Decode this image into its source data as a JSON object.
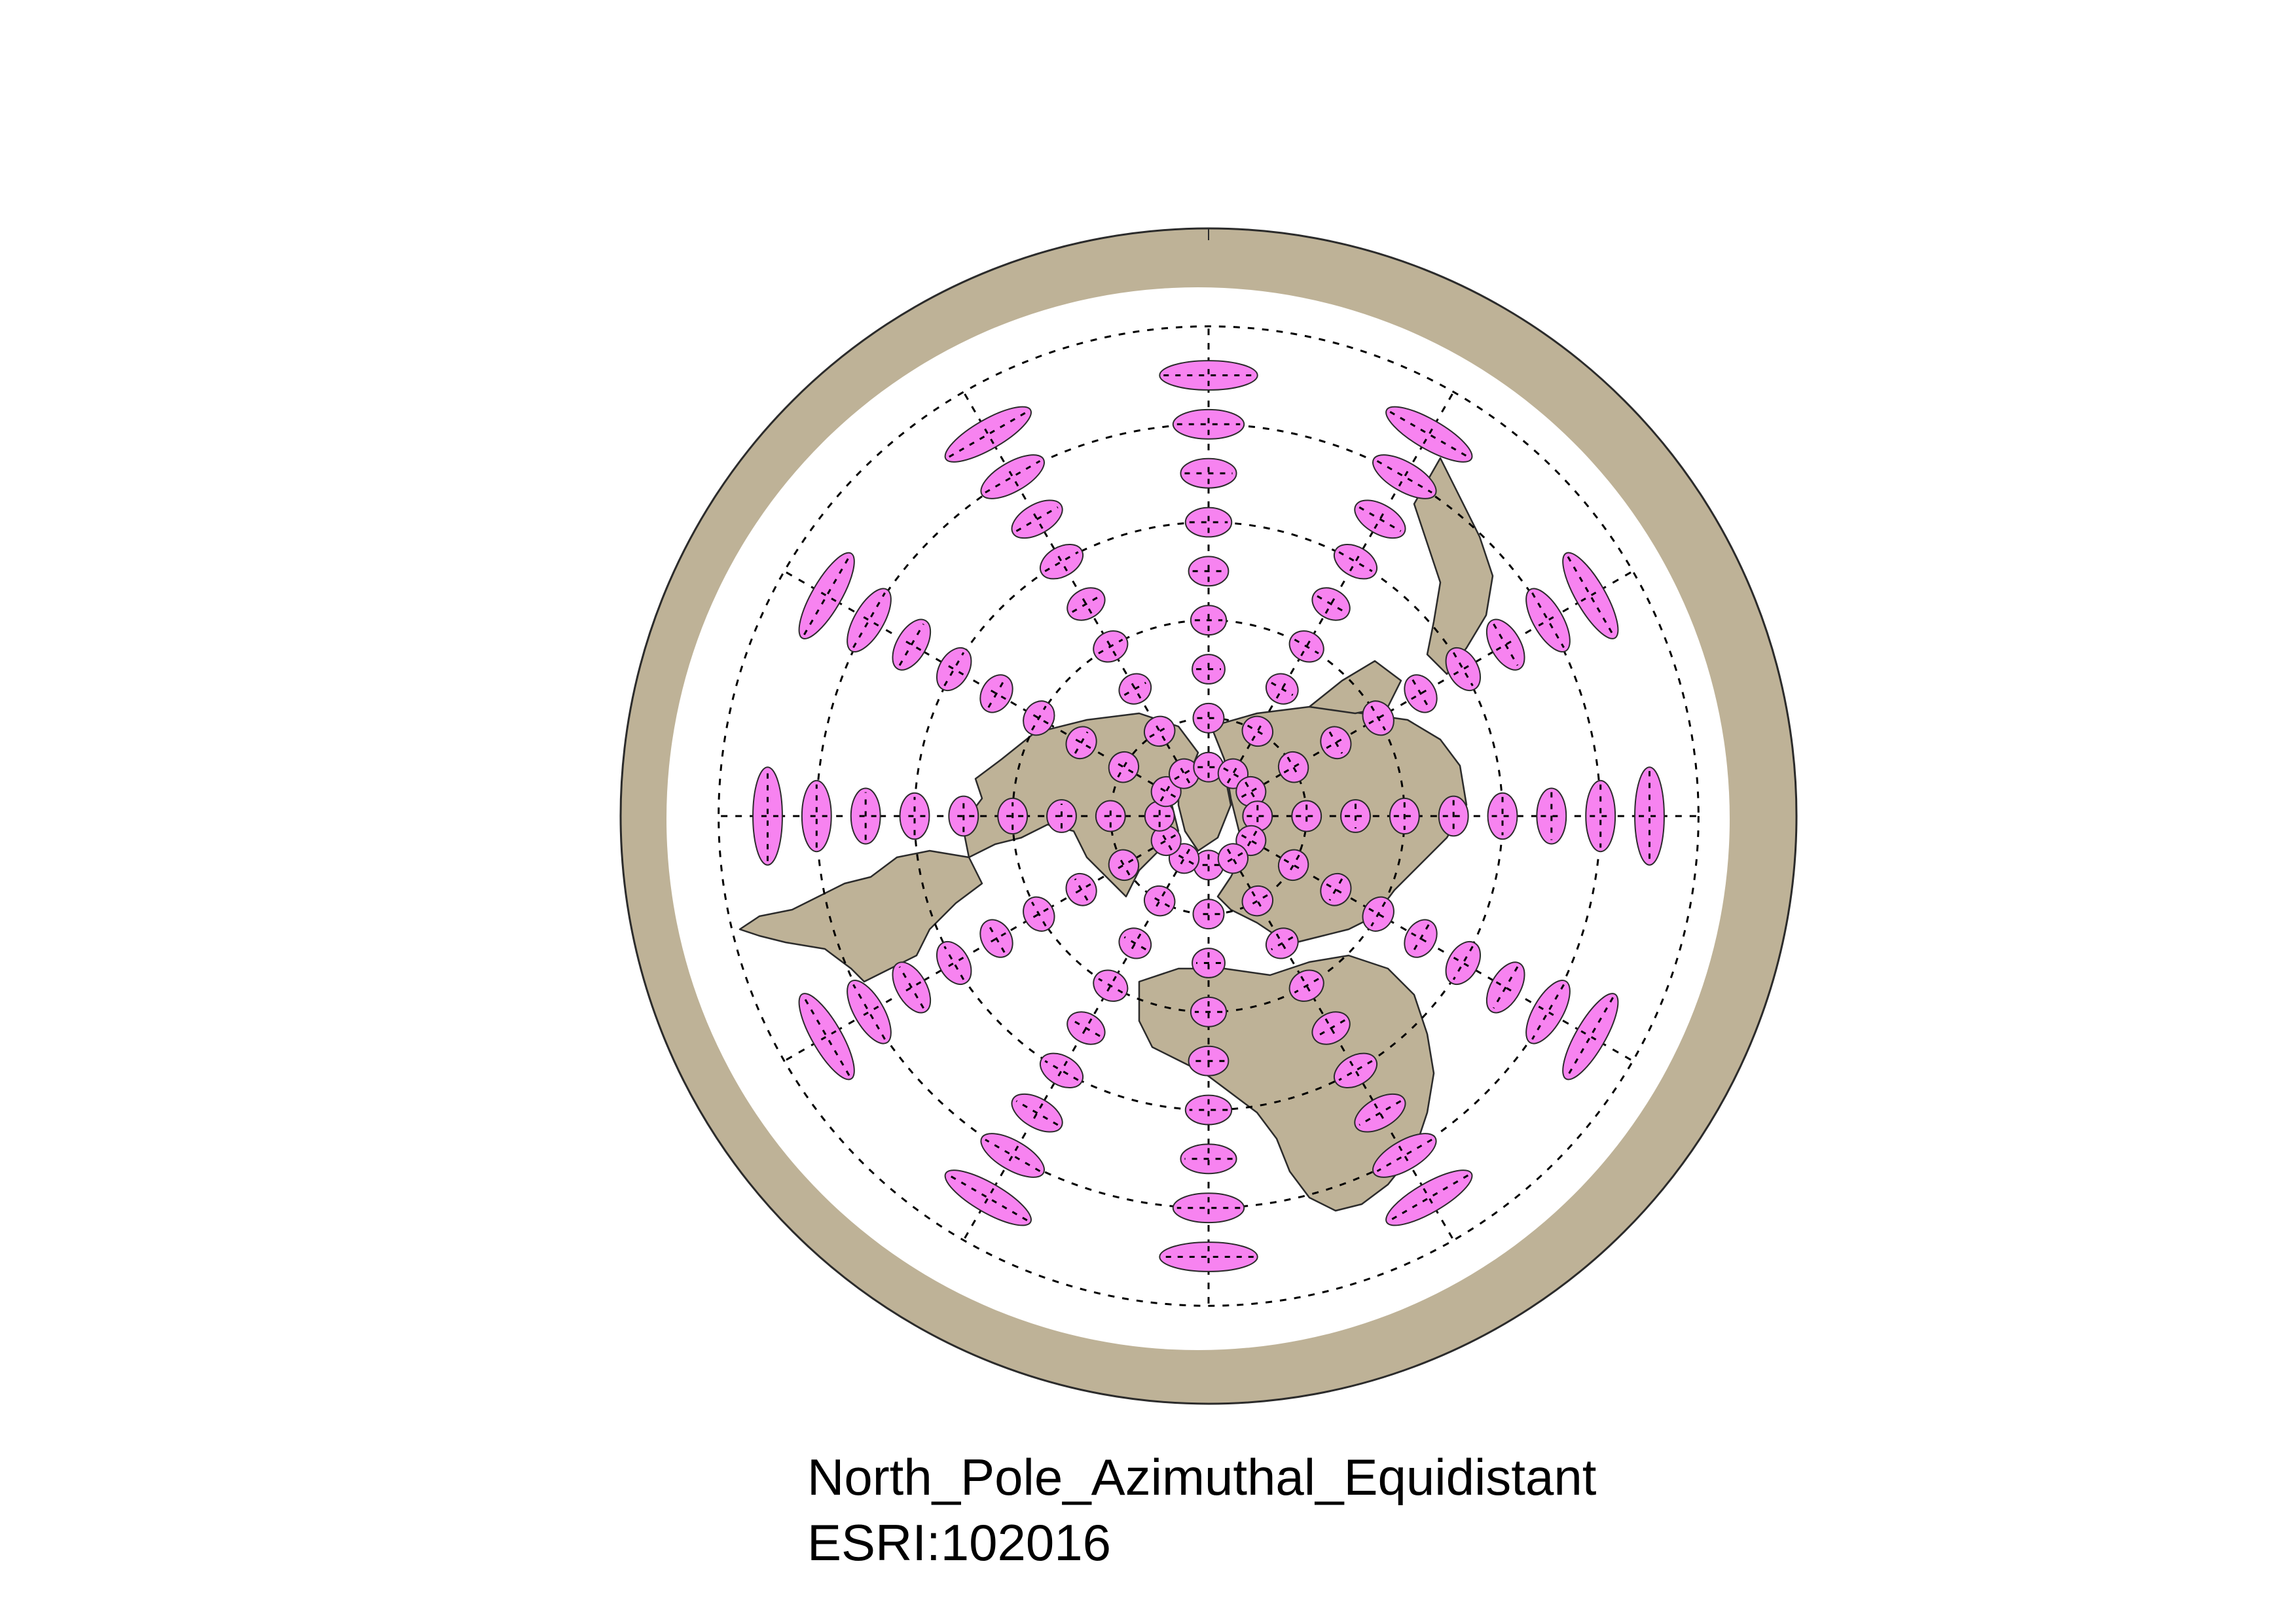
{
  "caption": {
    "projection_name": "North_Pole_Azimuthal_Equidistant",
    "crs_code": "ESRI:102016"
  },
  "colors": {
    "land": "#beb297",
    "ocean": "#ffffff",
    "outline": "#2b2b2b",
    "indicatrix_fill": "#f783f0",
    "graticule": "#000000"
  },
  "map": {
    "projection": "azimuthal-equidistant",
    "center": "north-pole",
    "graticule_parallels_deg": [
      60,
      30,
      0,
      -30,
      -60
    ],
    "graticule_meridian_step_deg": 30,
    "indicatrix": {
      "grid_lat_deg": [
        75,
        60,
        45,
        30,
        15,
        0,
        -15,
        -30,
        -45
      ],
      "grid_lon_step_deg": 30,
      "radius_km": 500
    }
  }
}
